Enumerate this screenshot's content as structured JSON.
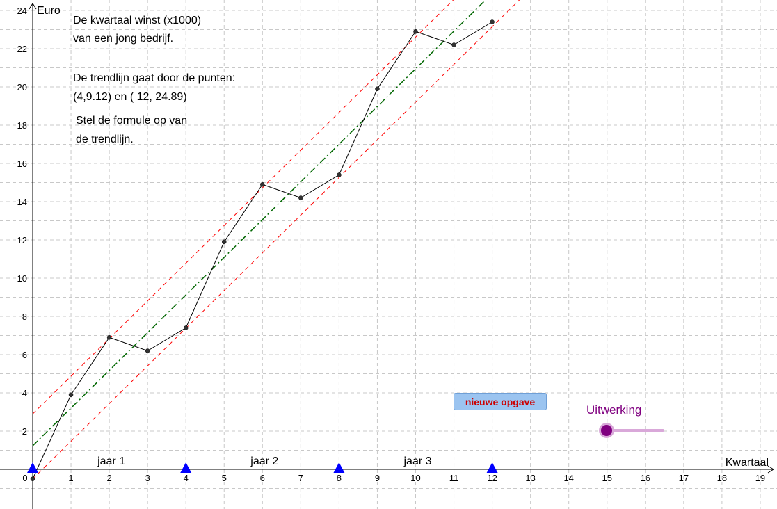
{
  "annotations": {
    "line1": "De kwartaal winst (x1000)",
    "line2": "van een jong bedrijf.",
    "line3": "De trendlijn gaat door de punten:",
    "line4": "(4,9.12)  en ( 12, 24.89)",
    "line5": "Stel de formule op van",
    "line6": "de trendlijn."
  },
  "controls": {
    "new_problem_label": "nieuwe opgave",
    "slider_label": "Uitwerking",
    "slider_value": 0
  },
  "colors": {
    "data_line": "#000000",
    "trend_line": "#006600",
    "band_lines": "#ff0000",
    "markers": "#0000ff",
    "slider": "#800080",
    "button_text": "#cc0000"
  },
  "chart_data": {
    "type": "line",
    "xlabel": "Kwartaal",
    "ylabel": "Euro",
    "xlim": [
      0,
      19
    ],
    "ylim": [
      0,
      24
    ],
    "x_ticks": [
      0,
      1,
      2,
      3,
      4,
      5,
      6,
      7,
      8,
      9,
      10,
      11,
      12,
      13,
      14,
      15,
      16,
      17,
      18,
      19
    ],
    "y_ticks": [
      2,
      4,
      6,
      8,
      10,
      12,
      14,
      16,
      18,
      20,
      22,
      24
    ],
    "grid": true,
    "series": [
      {
        "x": [
          0,
          1,
          2,
          3,
          4,
          5,
          6,
          7,
          8,
          9,
          10,
          11,
          12
        ],
        "values": [
          -0.5,
          3.9,
          6.9,
          6.2,
          7.4,
          11.9,
          14.9,
          14.2,
          15.4,
          19.9,
          22.9,
          22.2,
          23.4
        ]
      }
    ],
    "trend_line": {
      "points": [
        [
          4,
          9.12
        ],
        [
          12,
          24.89
        ]
      ]
    },
    "band_lines": [
      {
        "points": [
          [
            0,
            2.9
          ],
          [
            12,
            26.55
          ]
        ]
      },
      {
        "points": [
          [
            0,
            -0.5
          ],
          [
            12,
            23.15
          ]
        ]
      }
    ],
    "year_markers": [
      0,
      4,
      8,
      12
    ],
    "year_labels": [
      {
        "x": 2,
        "text": "jaar 1"
      },
      {
        "x": 6,
        "text": "jaar 2"
      },
      {
        "x": 10,
        "text": "jaar 3"
      }
    ]
  }
}
